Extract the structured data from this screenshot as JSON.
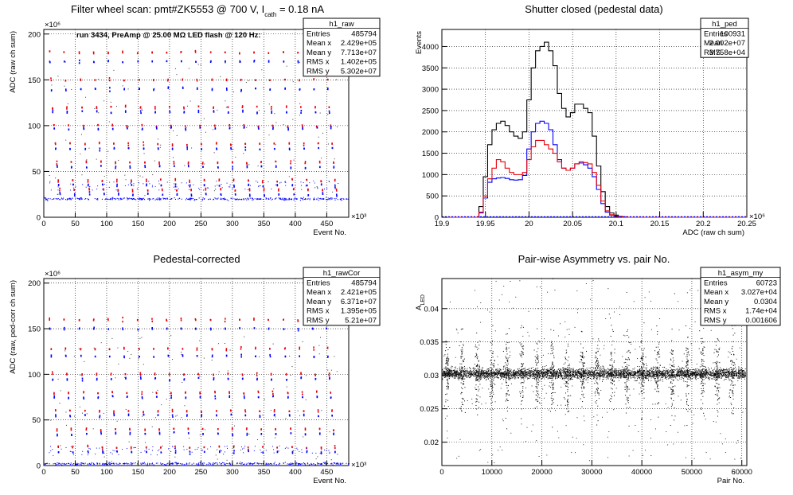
{
  "colors": {
    "red": "#e8000b",
    "blue": "#0000ff",
    "black": "#000000",
    "grid": "#000000"
  },
  "chart_data": [
    {
      "id": "raw",
      "type": "scatter",
      "title": "Filter wheel scan: pmt#ZK5553 @   700 V, I",
      "title_sub": "cath",
      "title_tail": " = 0.18 nA",
      "annotation": "run 3434, PreAmp @ 25.00 MΩ LED flash @  120 Hz:",
      "xlabel": "Event No.",
      "ylabel": "ADC (raw ch sum)",
      "x_exp": "×10³",
      "y_exp": "×10⁶",
      "xlim": [
        0,
        485
      ],
      "ylim": [
        0,
        205
      ],
      "xticks": [
        "0",
        "50",
        "100",
        "150",
        "200",
        "250",
        "300",
        "350",
        "400",
        "450"
      ],
      "yticks": [
        "0",
        "50",
        "100",
        "150",
        "200"
      ],
      "stats": {
        "name": "h1_raw",
        "rows": [
          [
            "Entries",
            "485794"
          ],
          [
            "Mean x",
            "2.429e+05"
          ],
          [
            "Mean y",
            "7.713e+07"
          ],
          [
            "RMS x",
            "1.402e+05"
          ],
          [
            "RMS y",
            "5.302e+07"
          ]
        ]
      },
      "levels_red": [
        180,
        150,
        120,
        100,
        80,
        60,
        40,
        30
      ],
      "levels_blue": [
        170,
        140,
        115,
        97,
        75,
        55,
        35,
        25
      ],
      "baseline": 20,
      "cycle_starts": [
        8,
        31,
        55,
        78,
        101,
        124,
        148,
        171,
        194,
        217,
        240,
        264,
        287,
        310,
        333,
        356,
        380,
        403,
        426,
        448
      ]
    },
    {
      "id": "ped",
      "type": "line",
      "title": "Shutter closed (pedestal data)",
      "xlabel": "ADC (raw ch sum)",
      "ylabel": "Events",
      "x_exp": "×10⁶",
      "xlim": [
        19.9,
        20.25
      ],
      "ylim": [
        0,
        4400
      ],
      "xticks": [
        "19.9",
        "19.95",
        "20",
        "20.05",
        "20.1",
        "20.15",
        "20.2",
        "20.25"
      ],
      "yticks": [
        "0",
        "500",
        "1000",
        "1500",
        "2000",
        "2500",
        "3000",
        "3500",
        "4000"
      ],
      "stats": {
        "name": "h1_ped",
        "rows": [
          [
            "Entries",
            "100931"
          ],
          [
            "Mean",
            "2.002e+07"
          ],
          [
            "RMS",
            "3.758e+04"
          ]
        ]
      },
      "bin_x": [
        19.945,
        19.95,
        19.955,
        19.96,
        19.965,
        19.97,
        19.975,
        19.98,
        19.985,
        19.99,
        19.995,
        20.0,
        20.005,
        20.01,
        20.015,
        20.02,
        20.025,
        20.03,
        20.035,
        20.04,
        20.045,
        20.05,
        20.055,
        20.06,
        20.065,
        20.07,
        20.075,
        20.08,
        20.085,
        20.09,
        20.095,
        20.1,
        20.105,
        20.11
      ],
      "series": [
        {
          "name": "black",
          "values": [
            250,
            950,
            1700,
            2050,
            2200,
            2250,
            2150,
            2000,
            1900,
            1850,
            2000,
            2750,
            3500,
            3900,
            4000,
            4100,
            3900,
            3550,
            2900,
            2550,
            2350,
            2450,
            2650,
            2650,
            2550,
            2450,
            1900,
            1200,
            600,
            250,
            100,
            50,
            20,
            10
          ]
        },
        {
          "name": "blue",
          "values": [
            100,
            450,
            820,
            900,
            920,
            930,
            910,
            880,
            870,
            880,
            980,
            1600,
            2000,
            2200,
            2250,
            2200,
            2050,
            1700,
            1350,
            1150,
            1100,
            1150,
            1250,
            1270,
            1230,
            1150,
            950,
            650,
            320,
            120,
            50,
            20,
            10,
            5
          ]
        },
        {
          "name": "red",
          "values": [
            120,
            500,
            900,
            1150,
            1350,
            1300,
            1150,
            1050,
            1000,
            1000,
            1050,
            1350,
            1650,
            1800,
            1800,
            1700,
            1600,
            1500,
            1300,
            1150,
            1100,
            1150,
            1250,
            1300,
            1280,
            1250,
            1050,
            750,
            380,
            150,
            60,
            25,
            10,
            5
          ]
        }
      ]
    },
    {
      "id": "rawCor",
      "type": "scatter",
      "title": "Pedestal-corrected",
      "xlabel": "Event No.",
      "ylabel": "ADC (raw, ped-corr ch sum)",
      "x_exp": "×10³",
      "y_exp": "×10⁶",
      "xlim": [
        0,
        485
      ],
      "ylim": [
        0,
        205
      ],
      "xticks": [
        "0",
        "50",
        "100",
        "150",
        "200",
        "250",
        "300",
        "350",
        "400",
        "450"
      ],
      "yticks": [
        "0",
        "50",
        "100",
        "150",
        "200"
      ],
      "stats": {
        "name": "h1_rawCor",
        "rows": [
          [
            "Entries",
            "485794"
          ],
          [
            "Mean x",
            "2.421e+05"
          ],
          [
            "Mean y",
            "6.371e+07"
          ],
          [
            "RMS x",
            "1.395e+05"
          ],
          [
            "RMS y",
            "5.21e+07"
          ]
        ]
      },
      "levels_red": [
        160,
        128,
        100,
        80,
        60,
        40,
        20
      ],
      "levels_blue": [
        150,
        120,
        95,
        75,
        55,
        35,
        15
      ],
      "baseline": 2,
      "cycle_starts": [
        8,
        31,
        55,
        78,
        101,
        124,
        148,
        171,
        194,
        217,
        240,
        264,
        287,
        310,
        333,
        356,
        380,
        403,
        426,
        448
      ]
    },
    {
      "id": "asym",
      "type": "scatter",
      "title": "Pair-wise Asymmetry vs. pair No.",
      "xlabel": "Pair No.",
      "ylabel": "A",
      "ylabel_sub": "LED",
      "xlim": [
        0,
        61000
      ],
      "ylim": [
        0.0165,
        0.0445
      ],
      "xticks": [
        "0",
        "10000",
        "20000",
        "30000",
        "40000",
        "50000",
        "60000"
      ],
      "ytick_values": [
        0.02,
        0.025,
        0.03,
        0.035,
        0.04
      ],
      "yticks": [
        "0.02",
        "0.025",
        "0.03",
        "0.035",
        "0.04"
      ],
      "stats": {
        "name": "h1_asym_my",
        "rows": [
          [
            "Entries",
            "60723"
          ],
          [
            "Mean x",
            "3.027e+04"
          ],
          [
            "Mean y",
            "0.0304"
          ],
          [
            "RMS x",
            "1.74e+04"
          ],
          [
            "RMS y",
            "0.001606"
          ]
        ]
      },
      "center": 0.0303,
      "spike_x": [
        1000,
        4000,
        7000,
        10000,
        13000,
        16000,
        19000,
        22000,
        25000,
        28000,
        31000,
        34000,
        37000,
        40000,
        43000,
        46000,
        49000,
        52000,
        55000,
        58000
      ]
    }
  ]
}
